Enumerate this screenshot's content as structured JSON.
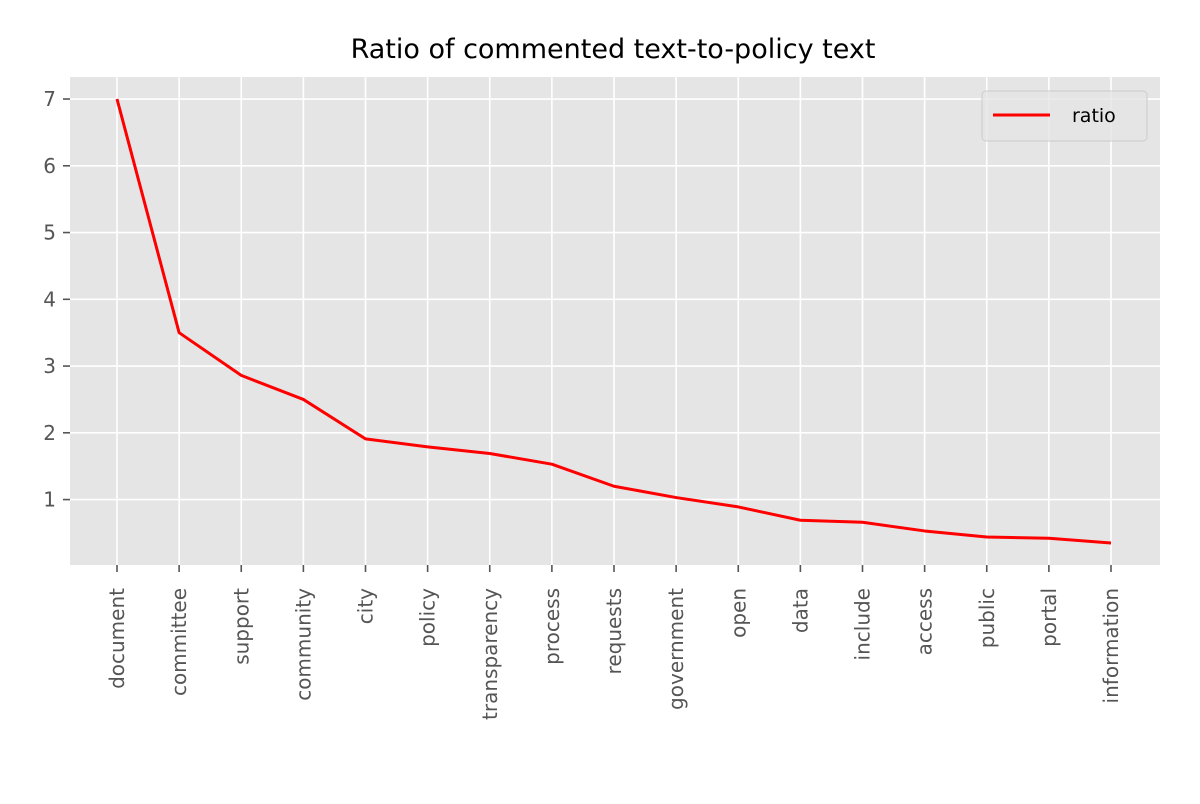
{
  "chart_data": {
    "type": "line",
    "title": "Ratio of commented text-to-policy text",
    "xlabel": "",
    "ylabel": "",
    "categories": [
      "document",
      "committee",
      "support",
      "community",
      "city",
      "policy",
      "transparency",
      "process",
      "requests",
      "government",
      "open",
      "data",
      "include",
      "access",
      "public",
      "portal",
      "information"
    ],
    "series": [
      {
        "name": "ratio",
        "color": "#ff0000",
        "values": [
          7.0,
          3.5,
          2.86,
          2.5,
          1.91,
          1.79,
          1.69,
          1.53,
          1.2,
          1.03,
          0.89,
          0.69,
          0.66,
          0.53,
          0.44,
          0.42,
          0.35
        ]
      }
    ],
    "yticks": [
      1,
      2,
      3,
      4,
      5,
      6,
      7
    ],
    "ylim": [
      0.02,
      7.33
    ],
    "grid": true,
    "legend_position": "top-right",
    "style": {
      "plot_background": "#e5e5e5",
      "grid_color": "#ffffff",
      "tick_color": "#555555"
    }
  }
}
